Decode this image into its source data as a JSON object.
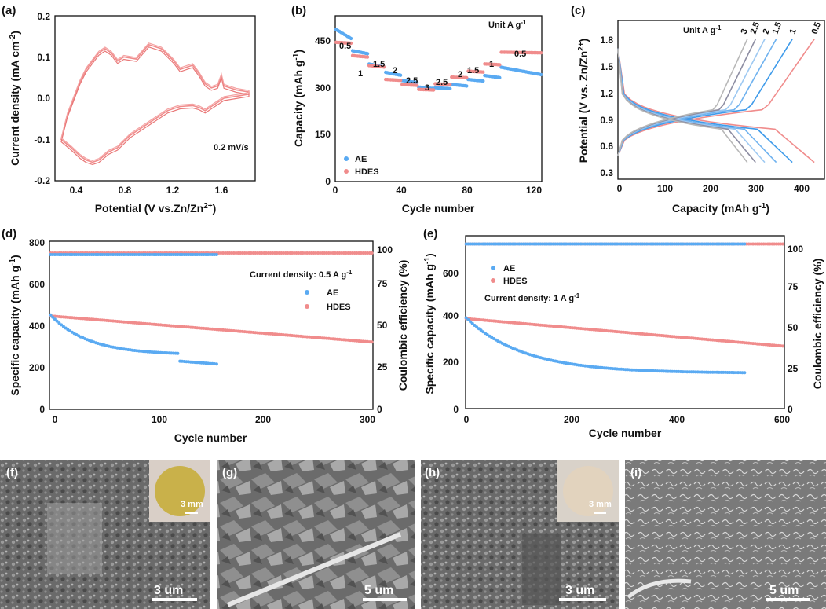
{
  "colors": {
    "ae": "#5aaaf2",
    "hdes": "#f08c8c",
    "axis": "#111111",
    "c_curves": [
      "#9ec9f2",
      "#6fb2ef",
      "#3f9bea",
      "#a7a7b8",
      "#8d8da2",
      "#b8b8b8"
    ]
  },
  "panels": {
    "a": {
      "label": "(a)",
      "xlabel": "Potential (V vs.Zn/Zn",
      "xlabel_sup": "2+",
      "xlabel_end": ")",
      "ylabel": "Current density (mA cm",
      "ylabel_sup": "-2",
      "ylabel_end": ")",
      "annotation": "0.2 mV/s",
      "xticks": [
        "0.4",
        "0.8",
        "1.2",
        "1.6"
      ],
      "yticks": [
        "-0.2",
        "-0.1",
        "0.0",
        "0.1",
        "0.2"
      ]
    },
    "b": {
      "label": "(b)",
      "xlabel": "Cycle number",
      "ylabel": "Capacity (mAh g",
      "ylabel_sup": "-1",
      "ylabel_end": ")",
      "unit_text": "Unit A g",
      "unit_sup": "-1",
      "rates": [
        "0.5",
        "1",
        "1.5",
        "2",
        "2.5",
        "3",
        "2.5",
        "2",
        "1.5",
        "1",
        "0.5"
      ],
      "legend": [
        "AE",
        "HDES"
      ],
      "xticks": [
        "0",
        "40",
        "80",
        "120"
      ],
      "yticks": [
        "0",
        "150",
        "300",
        "450"
      ]
    },
    "c": {
      "label": "(c)",
      "xlabel": "Capacity (mAh g",
      "xlabel_sup": "-1",
      "xlabel_end": ")",
      "ylabel": "Potential (V vs. Zn/Zn",
      "ylabel_sup": "2+",
      "ylabel_end": ")",
      "unit_text": "Unit A g",
      "unit_sup": "-1",
      "curve_labels": [
        "3",
        "2.5",
        "2",
        "1.5",
        "1",
        "0.5"
      ],
      "xticks": [
        "0",
        "100",
        "200",
        "300",
        "400"
      ],
      "yticks": [
        "0.3",
        "0.6",
        "0.9",
        "1.2",
        "1.5",
        "1.8"
      ]
    },
    "d": {
      "label": "(d)",
      "xlabel": "Cycle number",
      "ylabel_left": "Specific capacity (mAh g",
      "ylabel_left_sup": "-1",
      "ylabel_left_end": ")",
      "ylabel_right": "Coulombic efficiency (%)",
      "annotation": "Current density: 0.5 A g",
      "annotation_sup": "-1",
      "legend": [
        "AE",
        "HDES"
      ],
      "xticks": [
        "0",
        "100",
        "200",
        "300"
      ],
      "yticks_left": [
        "0",
        "200",
        "400",
        "600",
        "800"
      ],
      "yticks_right": [
        "0",
        "25",
        "50",
        "75",
        "100"
      ]
    },
    "e": {
      "label": "(e)",
      "xlabel": "Cycle number",
      "ylabel_left": "Specific capacity (mAh g",
      "ylabel_left_sup": "-1",
      "ylabel_left_end": ")",
      "ylabel_right": "Coulombic efficiency (%)",
      "annotation": "Current density: 1 A g",
      "annotation_sup": "-1",
      "legend": [
        "AE",
        "HDES"
      ],
      "xticks": [
        "0",
        "200",
        "400",
        "600"
      ],
      "yticks_left": [
        "0",
        "200",
        "400",
        "600"
      ],
      "yticks_right": [
        "0",
        "25",
        "50",
        "75",
        "100"
      ]
    },
    "images": [
      {
        "label": "(f)",
        "scale": "3 um",
        "inset_scale": "3 mm"
      },
      {
        "label": "(g)",
        "scale": "5 um"
      },
      {
        "label": "(h)",
        "scale": "3 um",
        "inset_scale": "3 mm"
      },
      {
        "label": "(i)",
        "scale": "5 um"
      }
    ]
  },
  "chart_data": [
    {
      "type": "line",
      "panel": "a",
      "xlim": [
        0.25,
        1.85
      ],
      "ylim": [
        -0.2,
        0.2
      ],
      "series": [
        {
          "x": [
            0.3,
            0.38,
            0.45,
            0.5,
            0.55,
            0.6,
            0.68,
            0.75,
            0.85,
            0.95,
            1.05,
            1.15,
            1.25,
            1.35,
            1.4,
            1.45,
            1.5,
            1.55,
            1.6,
            1.7,
            1.8,
            1.8,
            1.7,
            1.6,
            1.58,
            1.55,
            1.5,
            1.45,
            1.4,
            1.35,
            1.3,
            1.25,
            1.2,
            1.1,
            1.0,
            0.9,
            0.8,
            0.75,
            0.7,
            0.65,
            0.6,
            0.55,
            0.5,
            0.45,
            0.4,
            0.35,
            0.3
          ],
          "y": [
            -0.1,
            -0.12,
            -0.14,
            -0.15,
            -0.155,
            -0.15,
            -0.13,
            -0.12,
            -0.09,
            -0.07,
            -0.05,
            -0.03,
            -0.02,
            -0.018,
            -0.022,
            -0.03,
            -0.02,
            -0.01,
            0.0,
            0.005,
            0.01,
            0.015,
            0.02,
            0.03,
            0.055,
            0.03,
            0.025,
            0.035,
            0.06,
            0.08,
            0.075,
            0.07,
            0.09,
            0.12,
            0.13,
            0.095,
            0.1,
            0.09,
            0.11,
            0.12,
            0.11,
            0.09,
            0.07,
            0.04,
            0.0,
            -0.04,
            -0.1
          ]
        }
      ]
    },
    {
      "type": "scatter",
      "panel": "b",
      "xlim": [
        0,
        125
      ],
      "ylim": [
        0,
        500
      ],
      "series": [
        {
          "name": "AE",
          "segments": [
            [
              0,
              10,
              460,
              430
            ],
            [
              10,
              20,
              395,
              385
            ],
            [
              20,
              30,
              355,
              345
            ],
            [
              30,
              40,
              330,
              320
            ],
            [
              40,
              50,
              305,
              298
            ],
            [
              50,
              60,
              285,
              280
            ],
            [
              60,
              70,
              283,
              280
            ],
            [
              70,
              80,
              293,
              288
            ],
            [
              80,
              90,
              308,
              303
            ],
            [
              90,
              100,
              320,
              313
            ],
            [
              100,
              125,
              345,
              322
            ]
          ]
        },
        {
          "name": "HDES",
          "segments": [
            [
              0,
              10,
              420,
              417
            ],
            [
              10,
              20,
              380,
              375
            ],
            [
              20,
              30,
              350,
              345
            ],
            [
              30,
              40,
              308,
              305
            ],
            [
              40,
              50,
              293,
              290
            ],
            [
              50,
              60,
              278,
              276
            ],
            [
              60,
              70,
              295,
              293
            ],
            [
              70,
              80,
              315,
              313
            ],
            [
              80,
              90,
              333,
              330
            ],
            [
              90,
              100,
              355,
              352
            ],
            [
              100,
              125,
              390,
              388
            ]
          ]
        }
      ]
    },
    {
      "type": "line",
      "panel": "c",
      "xlim": [
        0,
        450
      ],
      "ylim": [
        0.2,
        1.9
      ],
      "series": [
        {
          "name": "0.5",
          "capacity": 428
        },
        {
          "name": "1",
          "capacity": 380
        },
        {
          "name": "1.5",
          "capacity": 345
        },
        {
          "name": "2",
          "capacity": 320
        },
        {
          "name": "2.5",
          "capacity": 300
        },
        {
          "name": "3",
          "capacity": 282
        }
      ]
    },
    {
      "type": "scatter",
      "panel": "d",
      "xlim": [
        0,
        300
      ],
      "ylim": [
        0,
        800
      ],
      "y2lim": [
        0,
        100
      ],
      "series": [
        {
          "name": "AE",
          "capacity_start": 455,
          "capacity_at_120": 260,
          "capacity_end_at_155": 215,
          "ce": 100
        },
        {
          "name": "HDES",
          "capacity_start": 445,
          "capacity_end_at_300": 320,
          "ce": 100
        }
      ]
    },
    {
      "type": "scatter",
      "panel": "e",
      "xlim": [
        0,
        600
      ],
      "ylim": [
        0,
        720
      ],
      "y2lim": [
        0,
        105
      ],
      "series": [
        {
          "name": "AE",
          "capacity_start": 380,
          "capacity_at_200": 200,
          "capacity_end_at_525": 148,
          "ce": 100
        },
        {
          "name": "HDES",
          "capacity_start": 375,
          "capacity_end_at_600": 260,
          "ce": 100
        }
      ]
    }
  ]
}
